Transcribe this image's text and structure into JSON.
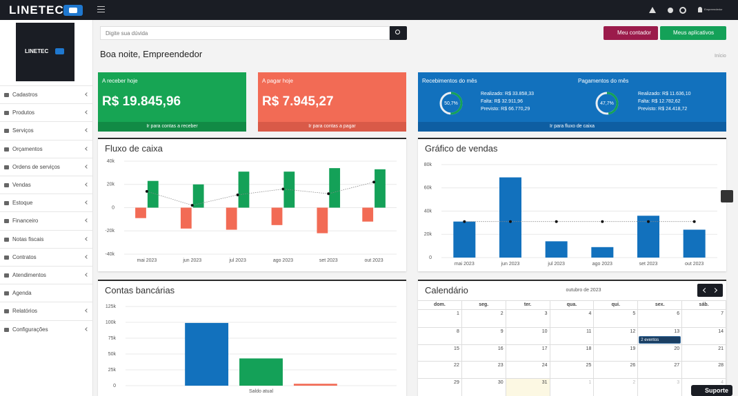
{
  "topbar": {
    "brand": "LINETEC",
    "user": "Empreendedor"
  },
  "sidebar": {
    "brand": "LINETEC",
    "menu": [
      {
        "label": "Cadastros",
        "submenu": true
      },
      {
        "label": "Produtos",
        "submenu": true
      },
      {
        "label": "Serviços",
        "submenu": true
      },
      {
        "label": "Orçamentos",
        "submenu": true
      },
      {
        "label": "Ordens de serviços",
        "submenu": true
      },
      {
        "label": "Vendas",
        "submenu": true
      },
      {
        "label": "Estoque",
        "submenu": true
      },
      {
        "label": "Financeiro",
        "submenu": true
      },
      {
        "label": "Notas fiscais",
        "submenu": true
      },
      {
        "label": "Contratos",
        "submenu": true
      },
      {
        "label": "Atendimentos",
        "submenu": true
      },
      {
        "label": "Agenda",
        "submenu": false
      },
      {
        "label": "Relatórios",
        "submenu": true
      },
      {
        "label": "Configurações",
        "submenu": true
      }
    ]
  },
  "search": {
    "placeholder": "Digite sua dúvida"
  },
  "buttons": {
    "accountant": "Meu contador",
    "apps": "Meus aplicativos"
  },
  "greeting": "Boa noite, Empreendedor",
  "breadcrumb": "Início",
  "cards": {
    "receive": {
      "title": "A receber hoje",
      "amount": "R$ 19.845,96",
      "link": "Ir para contas a receber"
    },
    "pay": {
      "title": "A pagar hoje",
      "amount": "R$ 7.945,27",
      "link": "Ir para contas a pagar"
    },
    "month": {
      "link": "Ir para fluxo de caixa",
      "groups": [
        {
          "title": "Recebimentos do mês",
          "percent": {
            "value": 50.7,
            "label": "50,7%"
          },
          "lines": [
            "Realizado: R$ 33.858,33",
            "Falta: R$ 32.911,96",
            "Previsto: R$ 66.770,29"
          ]
        },
        {
          "title": "Pagamentos do mês",
          "percent": {
            "value": 47.7,
            "label": "47,7%"
          },
          "lines": [
            "Realizado: R$ 11.636,10",
            "Falta: R$ 12.782,62",
            "Previsto: R$ 24.418,72"
          ]
        }
      ]
    }
  },
  "chart_data": [
    {
      "type": "bar",
      "title": "Fluxo de caixa",
      "categories": [
        "mai 2023",
        "jun 2023",
        "jul 2023",
        "ago 2023",
        "set 2023",
        "out 2023"
      ],
      "series": [
        {
          "color": "#f26b55",
          "values": [
            -9000,
            -18000,
            -19000,
            -15000,
            -22000,
            -12000
          ]
        },
        {
          "color": "#14a158",
          "values": [
            23000,
            20000,
            31000,
            31000,
            34000,
            33000
          ]
        },
        {
          "type": "line",
          "color": "#111111",
          "values": [
            14000,
            2000,
            11000,
            16000,
            12000,
            22000
          ]
        }
      ],
      "ylim": [
        -40000,
        40000
      ],
      "yticks": [
        {
          "value": 40000,
          "label": "40k"
        },
        {
          "value": 20000,
          "label": "20k"
        },
        0,
        {
          "value": -20000,
          "label": "-20k"
        },
        {
          "value": -40000,
          "label": "-40k"
        }
      ],
      "grid": true
    },
    {
      "type": "bar",
      "title": "Gráfico de vendas",
      "categories": [
        "mai 2023",
        "jun 2023",
        "jul 2023",
        "ago 2023",
        "set 2023",
        "out 2023"
      ],
      "series": [
        {
          "color": "#1271bd",
          "values": [
            31000,
            69000,
            14000,
            9000,
            36000,
            24000
          ]
        },
        {
          "type": "line",
          "color": "#111111",
          "values": [
            31000,
            31000,
            31000,
            31000,
            31000,
            31000
          ]
        }
      ],
      "ylim": [
        0,
        80000
      ],
      "yticks": [
        {
          "value": 80000,
          "label": "80k"
        },
        {
          "value": 60000,
          "label": "60k"
        },
        {
          "value": 40000,
          "label": "40k"
        },
        {
          "value": 20000,
          "label": "20k"
        },
        0
      ],
      "grid": true
    },
    {
      "type": "bar",
      "title": "Contas bancárias",
      "categories": [
        "Saldo atual"
      ],
      "series": [
        {
          "color": "#1271bd",
          "values": [
            99000
          ]
        },
        {
          "color": "#14a158",
          "values": [
            43000
          ]
        },
        {
          "color": "#f26b55",
          "values": [
            3000
          ]
        }
      ],
      "ylim": [
        0,
        125000
      ],
      "yticks": [
        {
          "value": 125000,
          "label": "125k"
        },
        {
          "value": 100000,
          "label": "100k"
        },
        {
          "value": 75000,
          "label": "75k"
        },
        {
          "value": 50000,
          "label": "50k"
        },
        {
          "value": 25000,
          "label": "25k"
        },
        0
      ],
      "grid": true
    }
  ],
  "calendar": {
    "title": "Calendário",
    "month": "outubro de 2023",
    "weekdays": [
      "dom.",
      "seg.",
      "ter.",
      "qua.",
      "qui.",
      "sex.",
      "sáb."
    ],
    "weeks": [
      [
        1,
        2,
        3,
        4,
        5,
        6,
        7
      ],
      [
        8,
        9,
        10,
        11,
        12,
        13,
        14
      ],
      [
        15,
        16,
        17,
        18,
        19,
        20,
        21
      ],
      [
        22,
        23,
        24,
        25,
        26,
        27,
        28
      ],
      [
        29,
        30,
        31,
        1,
        2,
        3,
        4
      ]
    ],
    "event": "2 eventos"
  },
  "support": "Suporte"
}
